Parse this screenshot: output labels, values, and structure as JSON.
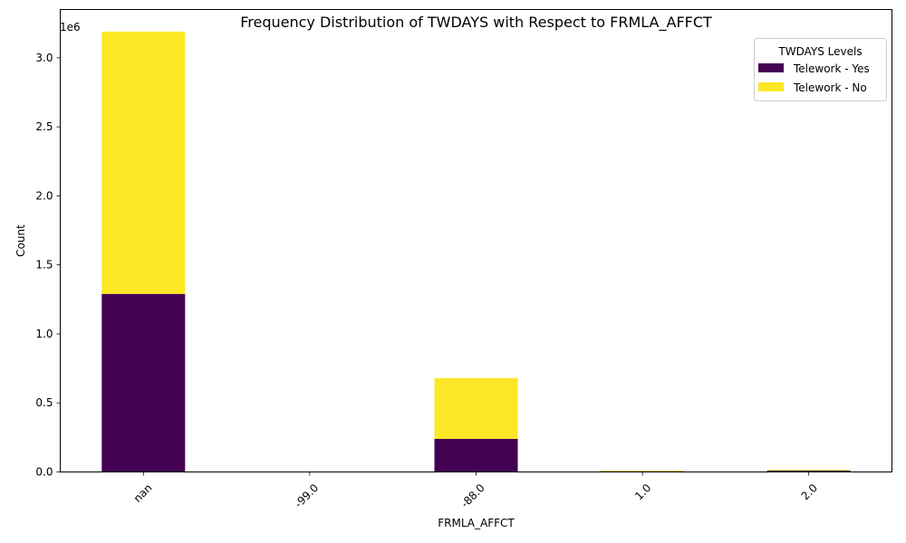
{
  "chart_data": {
    "type": "bar",
    "stacked": true,
    "title": "Frequency Distribution of TWDAYS with Respect to FRMLA_AFFCT",
    "xlabel": "FRMLA_AFFCT",
    "ylabel": "Count",
    "y_offset_label": "1e6",
    "categories": [
      "nan",
      "-99.0",
      "-88.0",
      "1.0",
      "2.0"
    ],
    "series": [
      {
        "name": "Telework - Yes",
        "color": "#440154",
        "values": [
          1290000,
          0,
          240000,
          5000,
          10000
        ]
      },
      {
        "name": "Telework - No",
        "color": "#fde725",
        "values": [
          1900000,
          0,
          440000,
          5000,
          5000
        ]
      }
    ],
    "ylim": [
      0,
      3350000
    ],
    "yticks": [
      0,
      500000,
      1000000,
      1500000,
      2000000,
      2500000,
      3000000
    ],
    "ytick_labels": [
      "0.0",
      "0.5",
      "1.0",
      "1.5",
      "2.0",
      "2.5",
      "3.0"
    ],
    "xtick_rotation": 45,
    "grid": false,
    "legend": {
      "title": "TWDAYS Levels",
      "placement": "upper right"
    }
  }
}
